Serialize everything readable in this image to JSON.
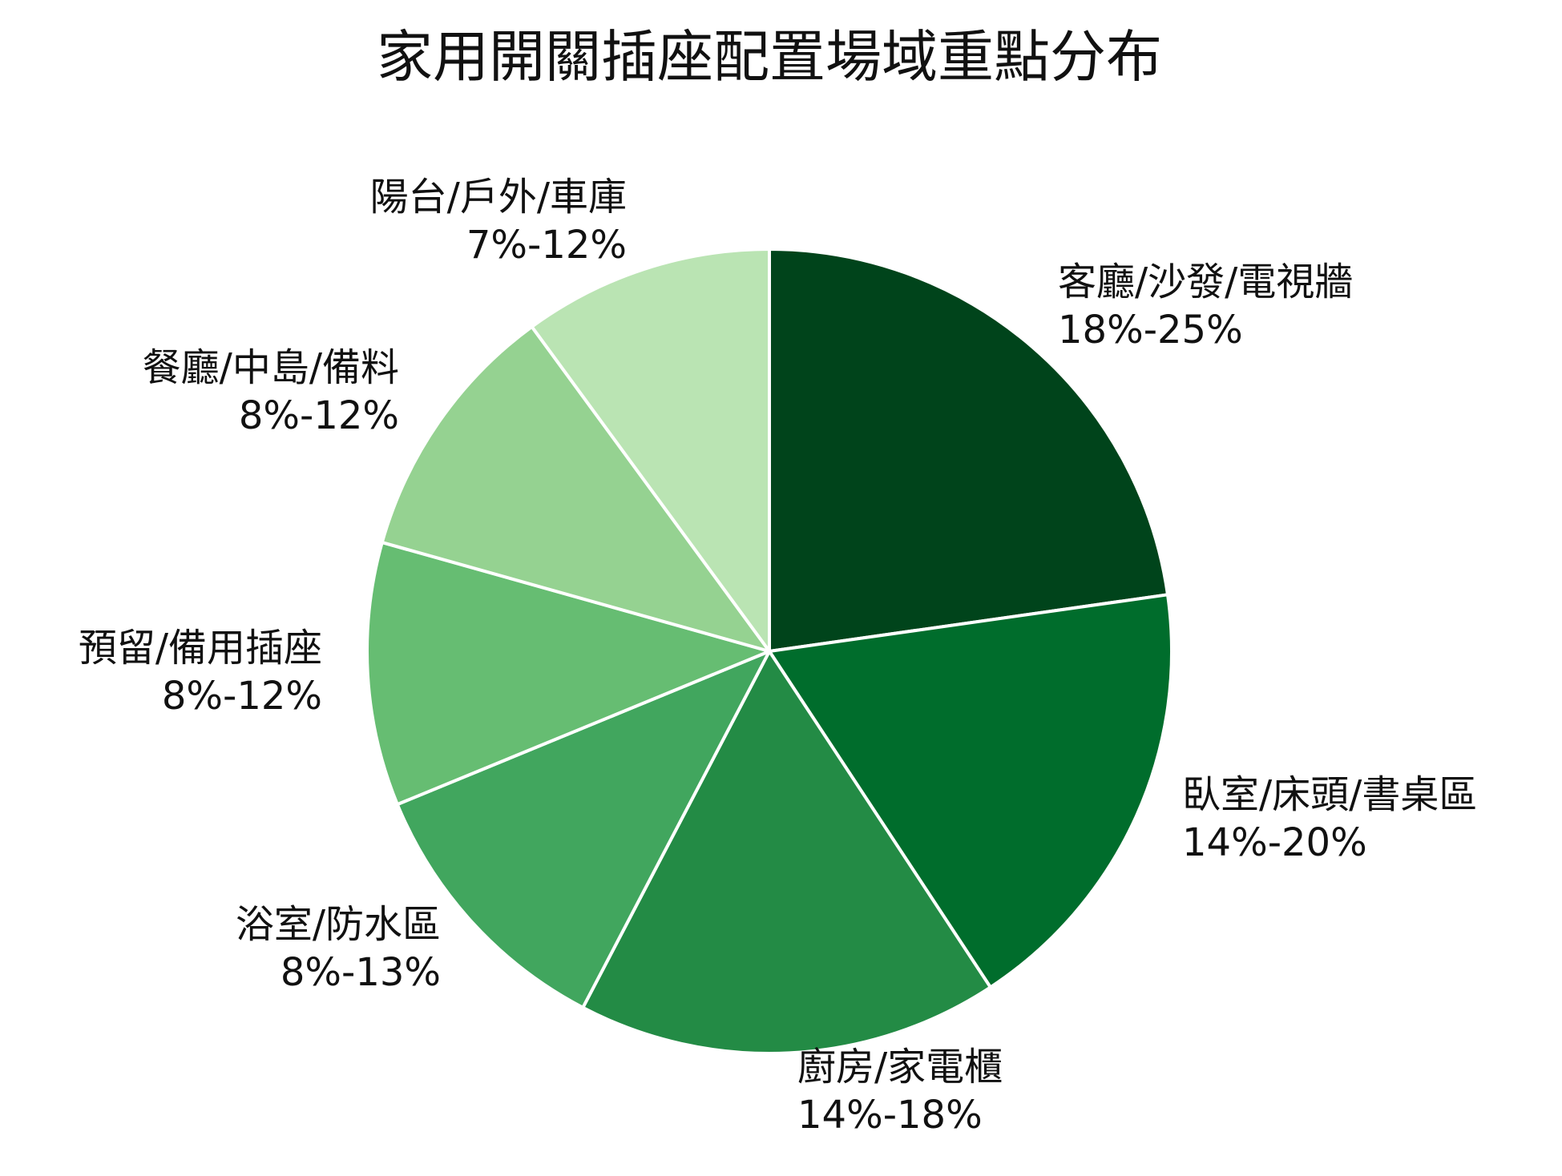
{
  "chart_data": {
    "type": "pie",
    "title": "家用開關插座配置場域重點分布",
    "slices": [
      {
        "label": "客廳/沙發/電視牆",
        "range": "18%-25%",
        "value": 21.5,
        "color": "#00441b"
      },
      {
        "label": "臥室/床頭/書桌區",
        "range": "14%-20%",
        "value": 17,
        "color": "#006d2c"
      },
      {
        "label": "廚房/家電櫃",
        "range": "14%-18%",
        "value": 16,
        "color": "#238b45"
      },
      {
        "label": "浴室/防水區",
        "range": "8%-13%",
        "value": 10.5,
        "color": "#41a65e"
      },
      {
        "label": "預留/備用插座",
        "range": "8%-12%",
        "value": 10,
        "color": "#66bd72"
      },
      {
        "label": "餐廳/中島/備料",
        "range": "8%-12%",
        "value": 10,
        "color": "#95d291"
      },
      {
        "label": "陽台/戶外/車庫",
        "range": "7%-12%",
        "value": 9.5,
        "color": "#bae4b3"
      }
    ]
  }
}
